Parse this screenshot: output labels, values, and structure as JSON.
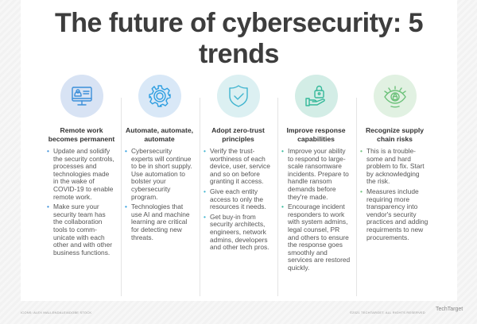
{
  "title": "The future of cybersecurity: 5 trends",
  "trends": [
    {
      "icon": "computer-user-icon",
      "color": "#3b8fd9",
      "bg": "#d8e3f4",
      "heading": "Remote work becomes permanent",
      "bullets": [
        "Update and solidify the security controls, processes and technologies made in the wake of COVID-19 to enable remote work.",
        "Make sure your security team has the collaboration tools to comm-unicate with each other and with other business functions."
      ]
    },
    {
      "icon": "gear-icon",
      "color": "#2e9ee0",
      "bg": "#d9e8f7",
      "heading": "Automate, automate, automate",
      "bullets": [
        "Cybersecurity experts will continue to be in short supply. Use automation to bolster your cybersecurity program.",
        "Technologies that use AI and machine learning are critical for detecting new threats."
      ]
    },
    {
      "icon": "shield-check-icon",
      "color": "#3fb4cf",
      "bg": "#dcf0f2",
      "heading": "Adopt zero-trust principles",
      "bullets": [
        "Verify the trust-worthiness of each device, user, service and so on before granting it access.",
        "Give each entity access to only the resources it needs.",
        "Get buy-in from security architects, engineers, network admins, developers and other tech pros."
      ]
    },
    {
      "icon": "hand-lock-icon",
      "color": "#36b99a",
      "bg": "#d3ede6",
      "heading": "Improve response capabilities",
      "bullets": [
        "Improve your ability to respond to large-scale ransomware incidents. Prepare to handle ransom demands before they're made.",
        "Encourage incident responders to work with system admins, legal counsel, PR and others to ensure the response goes smoothly and services are restored quickly."
      ]
    },
    {
      "icon": "eye-lock-icon",
      "color": "#6cc17a",
      "bg": "#e1f1e2",
      "heading": "Recognize supply chain risks",
      "bullets": [
        "This is a trouble-some and hard problem to fix. Start by acknowledging the risk.",
        "Measures include requiring more transparency into vendor's security practices and adding requirments to new procurements."
      ]
    }
  ],
  "footer": {
    "credit": "ICONS: ALEX MALLENDALE/ADOBE STOCK",
    "copyright": "©2021 TECHTARGET. ALL RIGHTS RESERVED",
    "logo": "TechTarget"
  }
}
